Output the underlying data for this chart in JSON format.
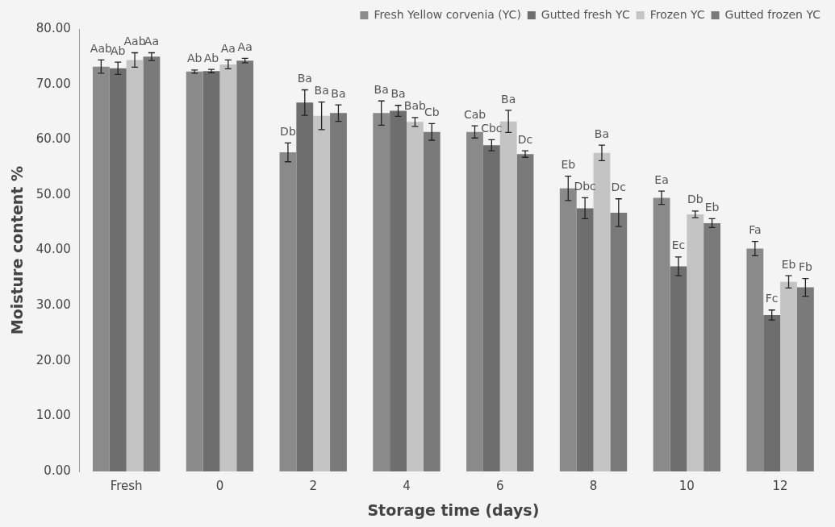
{
  "chart_data": {
    "type": "bar",
    "xlabel": "Storage time (days)",
    "ylabel": "Moisture content %",
    "categories": [
      "Fresh",
      "0",
      "2",
      "4",
      "6",
      "8",
      "10",
      "12"
    ],
    "ylim": [
      0,
      80
    ],
    "yticks": [
      {
        "value": 0,
        "label": "0.00"
      },
      {
        "value": 10,
        "label": "10.00"
      },
      {
        "value": 20,
        "label": "20.00"
      },
      {
        "value": 30,
        "label": "30.00"
      },
      {
        "value": 40,
        "label": "40.00"
      },
      {
        "value": 50,
        "label": "50.00"
      },
      {
        "value": 60,
        "label": "60.00"
      },
      {
        "value": 70,
        "label": "70.00"
      },
      {
        "value": 80,
        "label": "80.00"
      }
    ],
    "grid": false,
    "legend": "top right",
    "series": [
      {
        "name": "Fresh Yellow corvenia (YC)",
        "color": "#8a8a8a",
        "values": [
          73.2,
          72.3,
          57.7,
          64.8,
          61.4,
          51.2,
          49.5,
          40.3
        ],
        "errors": [
          1.2,
          0.3,
          1.7,
          2.2,
          1.1,
          2.2,
          1.2,
          1.3
        ],
        "value_labels": [
          "Aab",
          "Ab",
          "Db",
          "Ba",
          "Cab",
          "Eb",
          "Ea",
          "Fa"
        ]
      },
      {
        "name": "Gutted fresh YC",
        "color": "#6e6e6e",
        "values": [
          72.9,
          72.4,
          66.7,
          65.2,
          59.0,
          47.6,
          37.1,
          28.3
        ],
        "errors": [
          1.1,
          0.3,
          2.3,
          1.0,
          1.0,
          1.9,
          1.7,
          0.9
        ],
        "value_labels": [
          "Ab",
          "Ab",
          "Ba",
          "Ba",
          "Cbc",
          "Dbc",
          "Ec",
          "Fc"
        ]
      },
      {
        "name": "Frozen YC",
        "color": "#c4c4c4",
        "values": [
          74.4,
          73.6,
          64.3,
          63.2,
          63.3,
          57.6,
          46.5,
          34.3
        ],
        "errors": [
          1.3,
          0.8,
          2.5,
          0.8,
          2.0,
          1.4,
          0.6,
          1.1
        ],
        "value_labels": [
          "Aab",
          "Aa",
          "Ba",
          "Bab",
          "Ba",
          "Ba",
          "Db",
          "Eb"
        ]
      },
      {
        "name": "Gutted frozen YC",
        "color": "#7a7a7a",
        "values": [
          75.0,
          74.3,
          64.8,
          61.4,
          57.4,
          46.8,
          44.9,
          33.3
        ],
        "errors": [
          0.7,
          0.4,
          1.5,
          1.5,
          0.6,
          2.5,
          0.8,
          1.6
        ],
        "value_labels": [
          "Aa",
          "Aa",
          "Ba",
          "Cb",
          "Dc",
          "Dc",
          "Eb",
          "Fb"
        ]
      }
    ]
  }
}
